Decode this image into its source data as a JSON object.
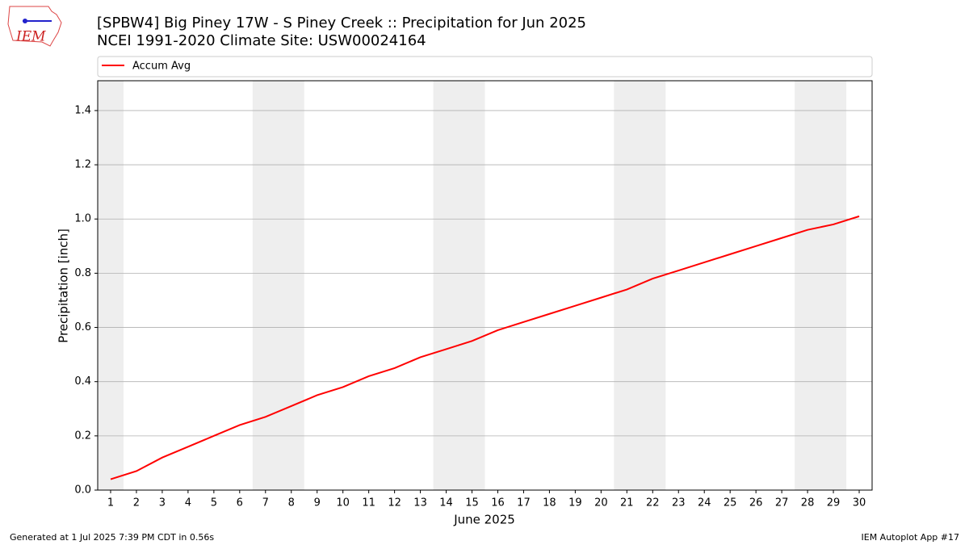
{
  "chart_data": {
    "type": "line",
    "title": "[SPBW4] Big Piney 17W - S Piney Creek :: Precipitation for Jun 2025",
    "subtitle": "NCEI 1991-2020 Climate Site: USW00024164",
    "logo": "IEM",
    "x_label": "June 2025",
    "y_label": "Precipitation [inch]",
    "footer_left": "Generated at 1 Jul 2025 7:39 PM CDT in 0.56s",
    "footer_right": "IEM Autoplot App #17",
    "x": [
      1,
      2,
      3,
      4,
      5,
      6,
      7,
      8,
      9,
      10,
      11,
      12,
      13,
      14,
      15,
      16,
      17,
      18,
      19,
      20,
      21,
      22,
      23,
      24,
      25,
      26,
      27,
      28,
      29,
      30
    ],
    "series": [
      {
        "name": "Accum Avg",
        "color": "#ff0000",
        "values": [
          0.04,
          0.07,
          0.12,
          0.16,
          0.2,
          0.24,
          0.27,
          0.31,
          0.35,
          0.38,
          0.42,
          0.45,
          0.49,
          0.52,
          0.55,
          0.59,
          0.62,
          0.65,
          0.68,
          0.71,
          0.74,
          0.78,
          0.81,
          0.84,
          0.87,
          0.9,
          0.93,
          0.96,
          0.98,
          1.01
        ]
      }
    ],
    "shaded_spans": [
      [
        0.5,
        1.5
      ],
      [
        6.5,
        8.5
      ],
      [
        13.5,
        15.5
      ],
      [
        20.5,
        22.5
      ],
      [
        27.5,
        29.5
      ]
    ],
    "shade_color": "#eeeeee",
    "xlim": [
      0.5,
      30.5
    ],
    "xticks": [
      1,
      2,
      3,
      4,
      5,
      6,
      7,
      8,
      9,
      10,
      11,
      12,
      13,
      14,
      15,
      16,
      17,
      18,
      19,
      20,
      21,
      22,
      23,
      24,
      25,
      26,
      27,
      28,
      29,
      30
    ],
    "ylim": [
      0,
      1.51
    ],
    "yticks": [
      {
        "value": 0,
        "label": "0.0"
      },
      0.2,
      0.4,
      0.6,
      0.8,
      {
        "value": 1,
        "label": "1.0"
      },
      1.2,
      1.4
    ],
    "grid": "y",
    "legend": "top"
  }
}
